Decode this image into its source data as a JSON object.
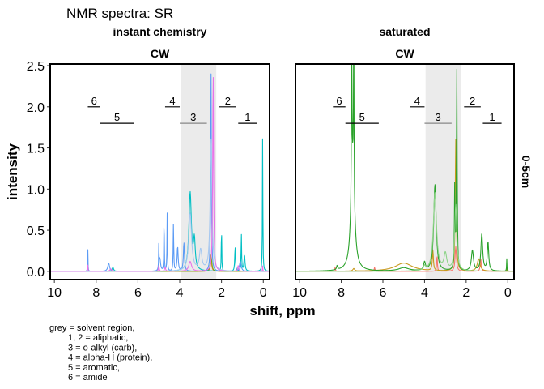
{
  "chart_data": {
    "type": "line",
    "title": "NMR spectra: SR",
    "xlabel": "shift, ppm",
    "ylabel": "intensity",
    "xlim": [
      10.2,
      -0.3
    ],
    "ylim": [
      -0.1,
      2.52
    ],
    "x_ticks": [
      10,
      8,
      6,
      4,
      2,
      0
    ],
    "y_ticks": [
      0.0,
      0.5,
      1.0,
      1.5,
      2.0,
      2.5
    ],
    "x_tick_labels": [
      "10",
      "8",
      "6",
      "4",
      "2",
      "0"
    ],
    "y_tick_labels": [
      "0.0",
      "0.5",
      "1.0",
      "1.5",
      "2.0",
      "2.5"
    ],
    "x_reversed": true,
    "grid": false,
    "legend": "none",
    "row_strip": "0-5cm",
    "solvent_region": {
      "x0": 3.95,
      "x1": 2.25,
      "color": "#ebebeb"
    },
    "regions": [
      {
        "label": "1",
        "x0": 1.2,
        "x1": 0.3,
        "y": 1.8,
        "label_color": "#000000"
      },
      {
        "label": "2",
        "x0": 2.1,
        "x1": 1.3,
        "y": 2.0,
        "label_color": "#000000"
      },
      {
        "label": "3",
        "x0": 4.0,
        "x1": 2.7,
        "y": 1.8,
        "label_color": "#888888"
      },
      {
        "label": "4",
        "x0": 4.7,
        "x1": 4.0,
        "y": 2.0,
        "label_color": "#000000"
      },
      {
        "label": "5",
        "x0": 7.8,
        "x1": 6.2,
        "y": 1.8,
        "label_color": "#000000"
      },
      {
        "label": "6",
        "x0": 8.4,
        "x1": 7.8,
        "y": 2.0,
        "label_color": "#000000"
      }
    ],
    "panels": [
      {
        "strip_top": "instant chemistry",
        "strip_bottom": "CW",
        "series": [
          {
            "color": "#f8766d",
            "peaks": [
              [
                2.5,
                0.12,
                0.04
              ]
            ]
          },
          {
            "color": "#7cae00",
            "peaks": [
              [
                2.5,
                0.2,
                0.04
              ]
            ]
          },
          {
            "color": "#00bfc4",
            "peaks": [
              [
                0.03,
                1.68,
                0.012
              ],
              [
                2.0,
                0.6,
                0.012
              ],
              [
                3.5,
                0.95,
                0.07
              ],
              [
                1.05,
                0.45,
                0.015
              ],
              [
                1.35,
                0.3,
                0.02
              ],
              [
                0.9,
                0.2,
                0.03
              ],
              [
                3.3,
                0.35,
                0.05
              ],
              [
                7.2,
                0.05,
                0.04
              ]
            ]
          },
          {
            "color": "#5b9bf5",
            "peaks": [
              [
                4.6,
                0.7,
                0.012
              ],
              [
                4.75,
                0.72,
                0.012
              ],
              [
                5.0,
                0.3,
                0.01
              ],
              [
                4.3,
                0.58,
                0.015
              ],
              [
                8.4,
                0.28,
                0.01
              ],
              [
                3.8,
                0.35,
                0.03
              ],
              [
                4.1,
                0.3,
                0.03
              ],
              [
                7.4,
                0.1,
                0.05
              ],
              [
                1.1,
                0.12,
                0.05
              ],
              [
                2.5,
                2.4,
                0.02
              ],
              [
                4.95,
                0.15,
                0.04
              ]
            ]
          },
          {
            "color": "#a6c8f0",
            "peaks": [
              [
                3.5,
                0.7,
                0.08
              ],
              [
                2.5,
                1.6,
                0.05
              ],
              [
                3.0,
                0.25,
                0.07
              ]
            ]
          },
          {
            "color": "#e873e8",
            "peaks": [
              [
                2.4,
                2.45,
                0.025
              ],
              [
                8.4,
                0.08,
                0.01
              ],
              [
                4.7,
                0.05,
                0.03
              ],
              [
                5.0,
                0.07,
                0.02
              ],
              [
                1.2,
                0.07,
                0.03
              ],
              [
                0.03,
                0.07,
                0.01
              ],
              [
                3.5,
                0.12,
                0.08
              ],
              [
                7.3,
                0.03,
                0.05
              ]
            ]
          }
        ]
      },
      {
        "strip_top": "saturated",
        "strip_bottom": "CW",
        "series": [
          {
            "color": "#f8766d",
            "peaks": [
              [
                1.3,
                0.15,
                0.03
              ],
              [
                8.3,
                0.05,
                0.02
              ],
              [
                6.4,
                0.05,
                0.02
              ],
              [
                2.5,
                0.3,
                0.04
              ],
              [
                3.4,
                0.2,
                0.02
              ]
            ]
          },
          {
            "color": "#c89a1e",
            "peaks": [
              [
                2.5,
                1.6,
                0.03
              ],
              [
                5.0,
                0.1,
                0.5
              ],
              [
                1.4,
                0.15,
                0.08
              ],
              [
                3.6,
                0.25,
                0.03
              ],
              [
                7.4,
                0.03,
                0.05
              ],
              [
                0.05,
                0.05,
                0.01
              ]
            ]
          },
          {
            "color": "#2aa22a",
            "peaks": [
              [
                7.5,
                2.45,
                0.012
              ],
              [
                7.4,
                2.4,
                0.012
              ],
              [
                7.45,
                1.3,
                0.1
              ],
              [
                2.45,
                2.45,
                0.02
              ],
              [
                2.55,
                1.0,
                0.02
              ],
              [
                3.5,
                1.05,
                0.07
              ],
              [
                1.25,
                0.45,
                0.05
              ],
              [
                0.95,
                0.35,
                0.04
              ],
              [
                1.7,
                0.25,
                0.06
              ],
              [
                0.05,
                0.15,
                0.01
              ],
              [
                4.0,
                0.1,
                0.05
              ],
              [
                8.2,
                0.05,
                0.03
              ],
              [
                5.0,
                0.04,
                0.3
              ]
            ]
          },
          {
            "color": "#8fd48a",
            "peaks": [
              [
                3.5,
                0.95,
                0.09
              ],
              [
                2.5,
                0.8,
                0.06
              ],
              [
                3.0,
                0.2,
                0.08
              ],
              [
                4.0,
                0.05,
                0.05
              ]
            ]
          }
        ]
      }
    ]
  },
  "caption_lines": [
    "grey = solvent region,",
    "1, 2 = aliphatic,",
    "3 = o-alkyl (carb),",
    "4 = alpha-H (protein),",
    "5 = aromatic,",
    "6 = amide"
  ]
}
